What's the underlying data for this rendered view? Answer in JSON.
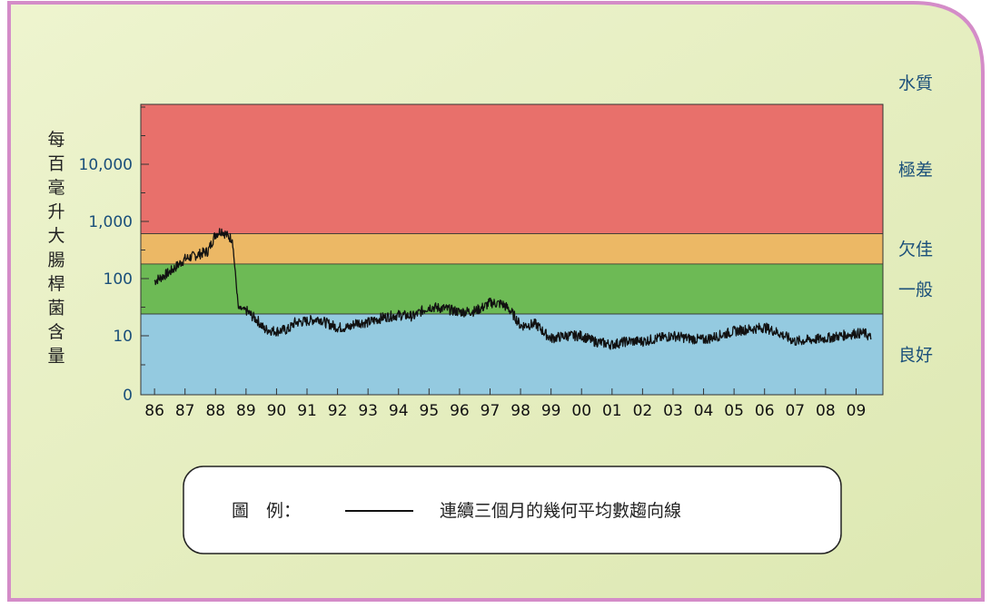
{
  "colors": {
    "background": "#e9f0c4",
    "border": "#d48cc8",
    "band_very_poor": "#e8706b",
    "band_poor": "#ecb865",
    "band_fair": "#6dba55",
    "band_good": "#94cae0",
    "series_line": "#111111",
    "axis_text": "#1a4f7a"
  },
  "chart_data": {
    "type": "line",
    "yscale": "log",
    "ylabel": "每百毫升大腸桿菌含量",
    "y_ticks": [
      "0",
      "10",
      "100",
      "1,000",
      "10,000"
    ],
    "x_ticks": [
      "86",
      "87",
      "88",
      "89",
      "90",
      "91",
      "92",
      "93",
      "94",
      "95",
      "96",
      "97",
      "98",
      "99",
      "00",
      "01",
      "02",
      "03",
      "04",
      "05",
      "06",
      "07",
      "08",
      "09"
    ],
    "quality_heading": "水質",
    "quality_bands": [
      {
        "label": "極差",
        "from": 610,
        "to": 200000
      },
      {
        "label": "欠佳",
        "from": 180,
        "to": 610
      },
      {
        "label": "一般",
        "from": 24,
        "to": 180
      },
      {
        "label": "良好",
        "from": 0,
        "to": 24
      }
    ],
    "series": [
      {
        "values": [
          [
            1986.0,
            90
          ],
          [
            1986.5,
            130
          ],
          [
            1987.0,
            220
          ],
          [
            1987.4,
            260
          ],
          [
            1987.75,
            300
          ],
          [
            1988.0,
            600
          ],
          [
            1988.2,
            700
          ],
          [
            1988.4,
            550
          ],
          [
            1988.55,
            500
          ],
          [
            1988.75,
            30
          ],
          [
            1989.0,
            28
          ],
          [
            1989.2,
            22
          ],
          [
            1989.4,
            18
          ],
          [
            1989.6,
            13
          ],
          [
            1990.0,
            12
          ],
          [
            1990.4,
            13
          ],
          [
            1990.6,
            17
          ],
          [
            1991.0,
            18
          ],
          [
            1991.4,
            20
          ],
          [
            1991.6,
            17
          ],
          [
            1992.0,
            14
          ],
          [
            1992.4,
            14
          ],
          [
            1992.6,
            17
          ],
          [
            1993.0,
            17
          ],
          [
            1993.5,
            21
          ],
          [
            1994.0,
            23
          ],
          [
            1994.5,
            22
          ],
          [
            1994.8,
            28
          ],
          [
            1995.0,
            32
          ],
          [
            1995.5,
            30
          ],
          [
            1996.0,
            26
          ],
          [
            1996.5,
            27
          ],
          [
            1996.8,
            32
          ],
          [
            1997.0,
            38
          ],
          [
            1997.4,
            36
          ],
          [
            1997.6,
            30
          ],
          [
            1997.8,
            22
          ],
          [
            1998.0,
            15
          ],
          [
            1998.5,
            16
          ],
          [
            1998.8,
            11
          ],
          [
            1999.0,
            9
          ],
          [
            1999.5,
            10
          ],
          [
            2000.0,
            10
          ],
          [
            2000.4,
            8
          ],
          [
            2000.7,
            7.5
          ],
          [
            2001.0,
            7
          ],
          [
            2001.5,
            8
          ],
          [
            2002.0,
            8
          ],
          [
            2002.5,
            9
          ],
          [
            2003.0,
            10
          ],
          [
            2003.5,
            9
          ],
          [
            2004.0,
            8.5
          ],
          [
            2004.5,
            10
          ],
          [
            2005.0,
            12
          ],
          [
            2005.5,
            13
          ],
          [
            2006.0,
            14
          ],
          [
            2006.5,
            11
          ],
          [
            2006.8,
            9
          ],
          [
            2007.0,
            8
          ],
          [
            2007.5,
            8.5
          ],
          [
            2008.0,
            9
          ],
          [
            2008.5,
            10
          ],
          [
            2009.0,
            11
          ],
          [
            2009.3,
            11
          ],
          [
            2009.5,
            9
          ]
        ]
      }
    ]
  },
  "legend": {
    "prefix": "圖　例：",
    "text": "連續三個月的幾何平均數趨向線"
  }
}
